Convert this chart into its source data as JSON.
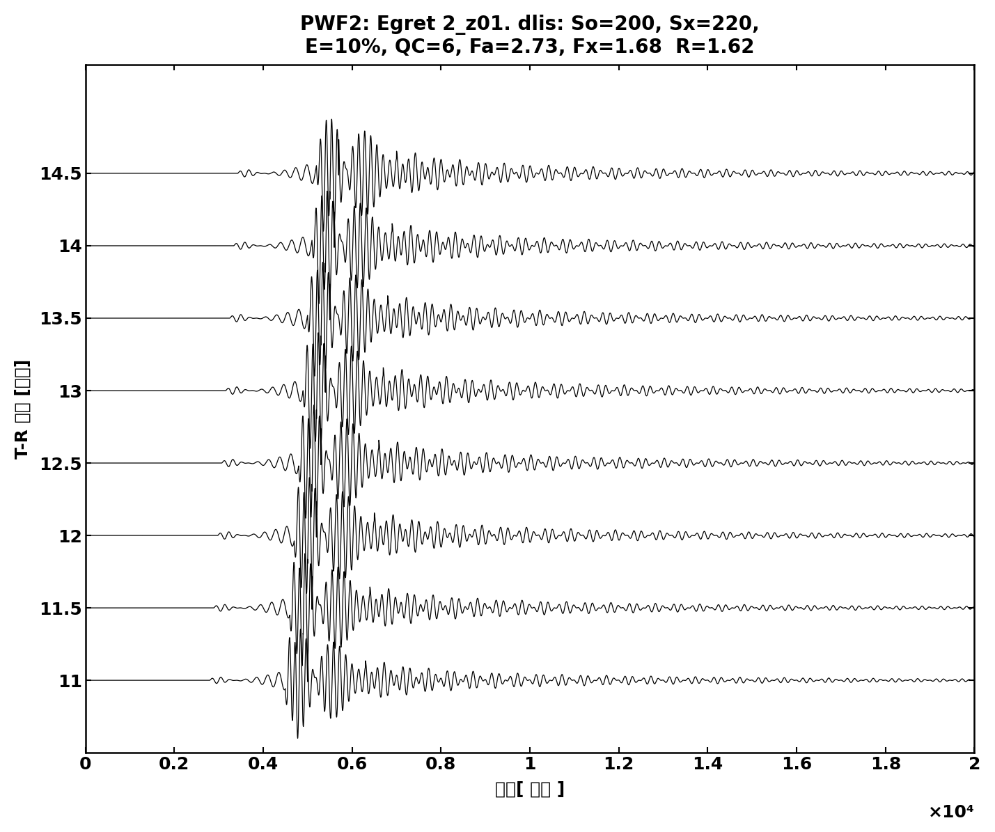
{
  "title_line1": "PWF2: Egret 2_z01. dlis: So=200, Sx=220,",
  "title_line2": "E=10%, QC=6, Fa=2.73, Fx=1.68  R=1.62",
  "xlabel": "时间[ 微秒 ]",
  "ylabel": "T-R 间隔 [英尺]",
  "x_scale_label": "×10⁴",
  "xlim": [
    0,
    20000
  ],
  "ylim": [
    10.5,
    15.25
  ],
  "yticks": [
    11,
    11.5,
    12,
    12.5,
    13,
    13.5,
    14,
    14.5
  ],
  "xticks": [
    0,
    2000,
    4000,
    6000,
    8000,
    10000,
    12000,
    14000,
    16000,
    18000,
    20000
  ],
  "xtick_labels": [
    "0",
    "0.2",
    "0.4",
    "0.6",
    "0.8",
    "1",
    "1.2",
    "1.4",
    "1.6",
    "1.8",
    "2"
  ],
  "traces": [
    11,
    11.5,
    12,
    12.5,
    13,
    13.5,
    14,
    14.5
  ],
  "background_color": "#ffffff",
  "line_color": "#000000",
  "title_fontsize": 20,
  "label_fontsize": 18,
  "tick_fontsize": 18
}
